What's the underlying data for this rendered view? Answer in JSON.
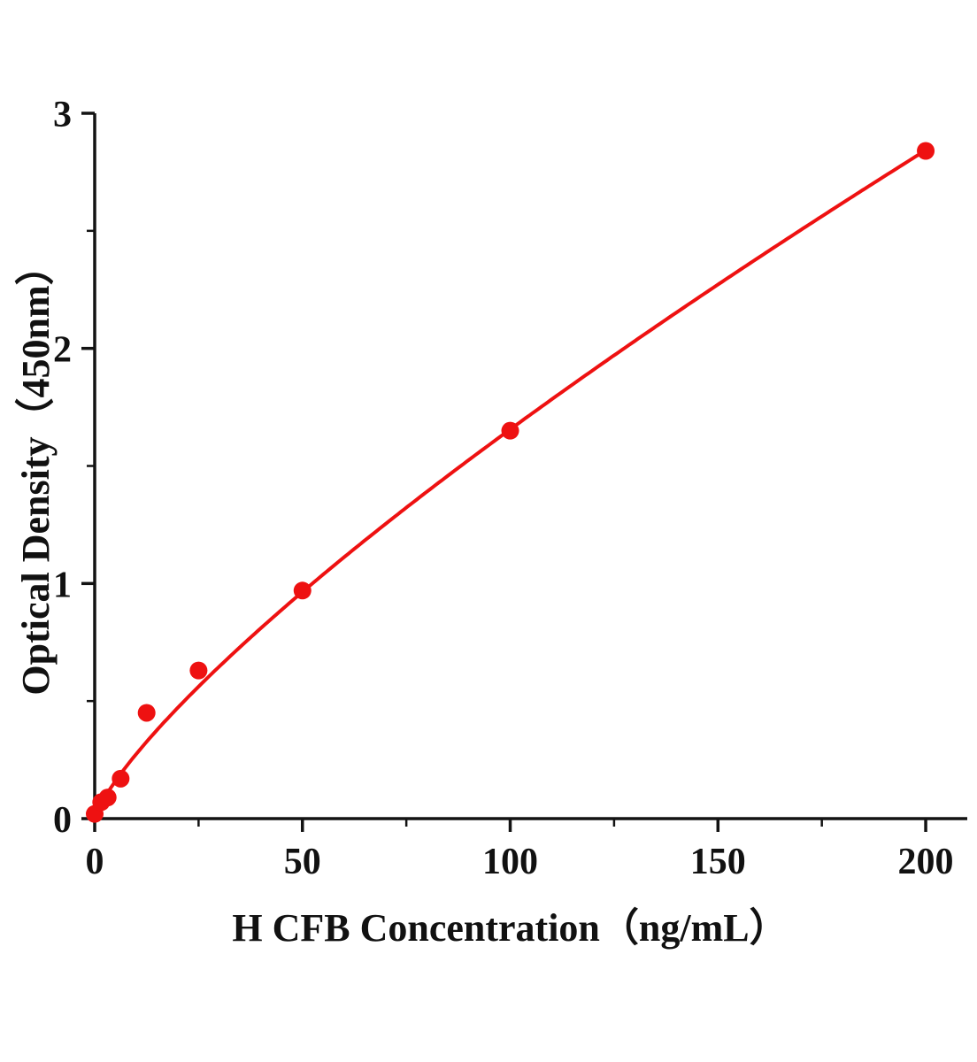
{
  "chart_data": {
    "type": "scatter",
    "title": "",
    "xlabel": "H CFB Concentration（ng/mL）",
    "ylabel": "Optical Density（450nm）",
    "x": [
      0,
      1.56,
      3.13,
      6.25,
      12.5,
      25,
      50,
      100,
      200
    ],
    "y": [
      0.02,
      0.07,
      0.09,
      0.17,
      0.45,
      0.63,
      0.97,
      1.65,
      2.84
    ],
    "xlim": [
      0,
      210
    ],
    "ylim": [
      0,
      3
    ],
    "x_ticks": [
      0,
      50,
      100,
      150,
      200
    ],
    "x_minor_ticks": [
      25,
      75,
      125,
      175
    ],
    "y_ticks": [
      0,
      1,
      2,
      3
    ],
    "y_minor_ticks": [
      0.5,
      1.5,
      2.5
    ],
    "fit_curve": {
      "model": "power",
      "a": 0.0456,
      "b": 0.78
    },
    "point_color": "#ee1111",
    "line_color": "#ee1111",
    "axis_color": "#131313",
    "grid": "off",
    "legend": "none"
  }
}
